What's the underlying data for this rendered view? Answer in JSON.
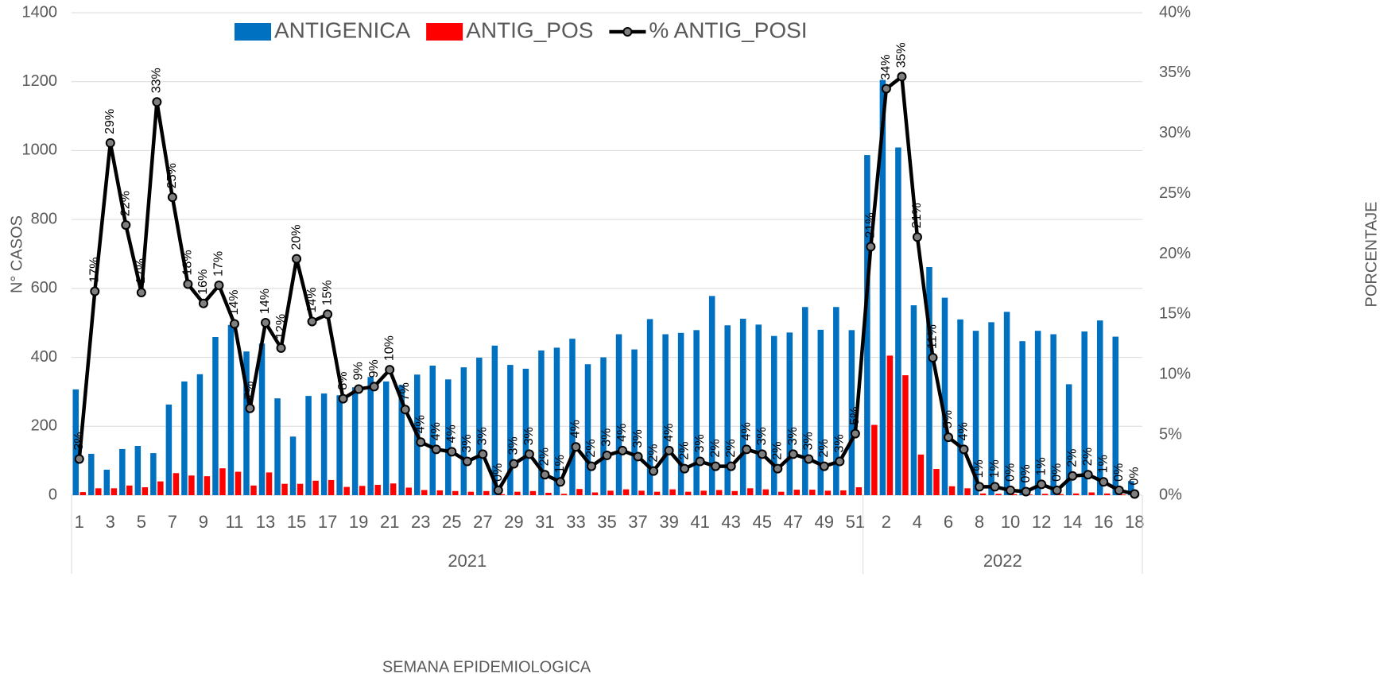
{
  "chart_data": {
    "type": "bar_line",
    "legend": "top",
    "grid": true,
    "xlabel": "SEMANA EPIDEMIOLOGICA",
    "ylabel": "N° CASOS",
    "y2label": "PORCENTAJE",
    "ylim": [
      0,
      1400
    ],
    "yticks": [
      0,
      200,
      400,
      600,
      800,
      1000,
      1200,
      1400
    ],
    "y2lim": [
      0,
      40
    ],
    "y2ticks": [
      {
        "value": 0,
        "label": "0%"
      },
      {
        "value": 5,
        "label": "5%"
      },
      {
        "value": 10,
        "label": "10%"
      },
      {
        "value": 15,
        "label": "15%"
      },
      {
        "value": 20,
        "label": "20%"
      },
      {
        "value": 25,
        "label": "25%"
      },
      {
        "value": 30,
        "label": "30%"
      },
      {
        "value": 35,
        "label": "35%"
      },
      {
        "value": 40,
        "label": "40%"
      }
    ],
    "category_groups": [
      {
        "label": "2021",
        "size": 51
      },
      {
        "label": "2022",
        "size": 18
      }
    ],
    "categories": [
      "1",
      null,
      "3",
      null,
      "5",
      null,
      "7",
      null,
      "9",
      null,
      "11",
      null,
      "13",
      null,
      "15",
      null,
      "17",
      null,
      "19",
      null,
      "21",
      null,
      "23",
      null,
      "25",
      null,
      "27",
      null,
      "29",
      null,
      "31",
      null,
      "33",
      null,
      "35",
      null,
      "37",
      null,
      "39",
      null,
      "41",
      null,
      "43",
      null,
      "45",
      null,
      "47",
      null,
      "49",
      null,
      "51",
      null,
      "2",
      null,
      "4",
      null,
      "6",
      null,
      "8",
      null,
      "10",
      null,
      "12",
      null,
      "14",
      null,
      "16",
      null,
      "18"
    ],
    "series": [
      {
        "name": "ANTIGENICA",
        "color": "#0070c0",
        "kind": "bar",
        "values": [
          307,
          120,
          74,
          134,
          143,
          122,
          263,
          330,
          351,
          459,
          494,
          417,
          440,
          281,
          170,
          288,
          295,
          290,
          313,
          343,
          330,
          320,
          350,
          376,
          336,
          371,
          399,
          434,
          378,
          367,
          420,
          428,
          454,
          380,
          400,
          467,
          423,
          511,
          467,
          471,
          479,
          578,
          493,
          512,
          495,
          462,
          472,
          546,
          480,
          546,
          479,
          987,
          1205,
          1009,
          551,
          662,
          573,
          510,
          477,
          502,
          532,
          447,
          477,
          467,
          322,
          475,
          507,
          460,
          41
        ]
      },
      {
        "name": "ANTIG_POS",
        "color": "#ff0000",
        "kind": "bar",
        "values": [
          9,
          20,
          20,
          28,
          23,
          40,
          64,
          57,
          55,
          78,
          68,
          28,
          66,
          33,
          33,
          42,
          44,
          24,
          27,
          30,
          34,
          22,
          15,
          14,
          12,
          10,
          12,
          3,
          10,
          12,
          7,
          4,
          18,
          8,
          13,
          17,
          13,
          10,
          17,
          10,
          13,
          15,
          12,
          20,
          17,
          10,
          16,
          16,
          13,
          14,
          23,
          204,
          405,
          348,
          118,
          76,
          26,
          20,
          5,
          4,
          3,
          2,
          4,
          3,
          5,
          8,
          5,
          2,
          0
        ]
      },
      {
        "name": "% ANTIG_POSI",
        "color": "#000000",
        "marker_color": "#7f7f7f",
        "kind": "line",
        "axis": "y2",
        "values": [
          3.0,
          16.9,
          29.2,
          22.4,
          16.8,
          32.6,
          24.7,
          17.5,
          15.9,
          17.4,
          14.2,
          7.2,
          14.3,
          12.2,
          19.6,
          14.4,
          15.0,
          8.0,
          8.8,
          9.0,
          10.4,
          7.1,
          4.4,
          3.8,
          3.6,
          2.8,
          3.4,
          0.4,
          2.6,
          3.4,
          1.7,
          1.1,
          4.0,
          2.4,
          3.3,
          3.7,
          3.2,
          2.0,
          3.7,
          2.2,
          2.8,
          2.4,
          2.4,
          3.8,
          3.4,
          2.2,
          3.4,
          3.0,
          2.4,
          2.8,
          5.1,
          20.6,
          33.7,
          34.7,
          21.4,
          11.4,
          4.8,
          3.8,
          0.7,
          0.7,
          0.4,
          0.3,
          0.9,
          0.4,
          1.6,
          1.7,
          1.1,
          0.4,
          0.1
        ],
        "value_labels": [
          "3%",
          "17%",
          "29%",
          "22%",
          "17%",
          "33%",
          "25%",
          "18%",
          "16%",
          "17%",
          "14%",
          "7%",
          "14%",
          "12%",
          "20%",
          "14%",
          "15%",
          "8%",
          "9%",
          "9%",
          "10%",
          "7%",
          "4%",
          "4%",
          "4%",
          "3%",
          "3%",
          "0%",
          "3%",
          "3%",
          "2%",
          "1%",
          "4%",
          "2%",
          "3%",
          "4%",
          "3%",
          "2%",
          "4%",
          "2%",
          "3%",
          "2%",
          "2%",
          "4%",
          "3%",
          "2%",
          "3%",
          "3%",
          "2%",
          "3%",
          "5%",
          "21%",
          "34%",
          "35%",
          "21%",
          "11%",
          "5%",
          "4%",
          "1%",
          "1%",
          "0%",
          "0%",
          "1%",
          "0%",
          "2%",
          "2%",
          "1%",
          "0%",
          "0%"
        ]
      }
    ]
  }
}
